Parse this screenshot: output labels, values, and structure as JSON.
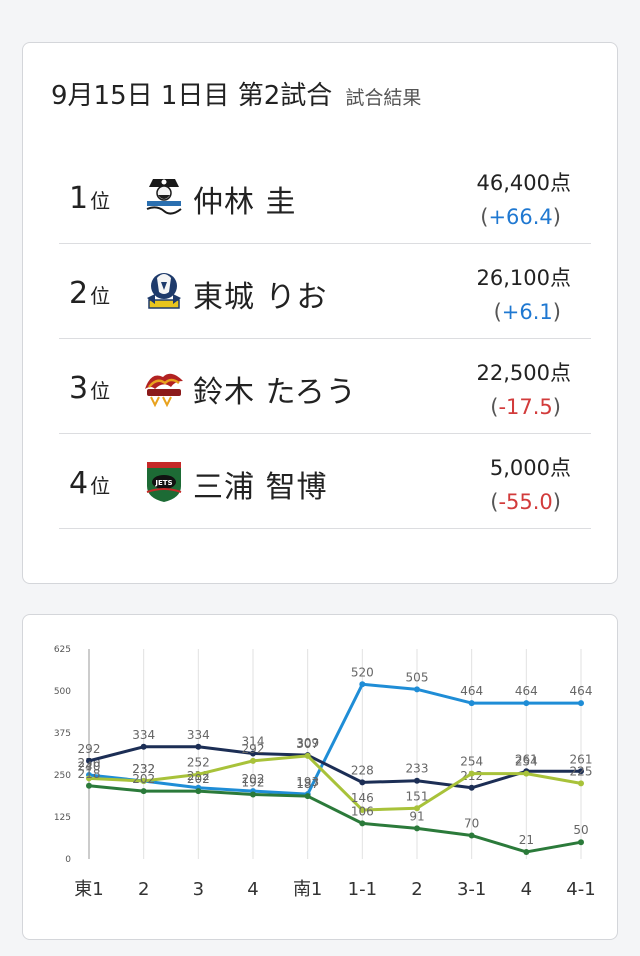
{
  "header": {
    "title": "9月15日 1日目 第2試合",
    "subtitle": "試合結果"
  },
  "results": [
    {
      "rank": "1",
      "rank_suffix": "位",
      "name": "仲林 圭",
      "score": "46,400点",
      "diff_open": "(",
      "diff": "+66.4",
      "diff_close": ")",
      "diff_sign": "pos",
      "logo": "pirates-logo"
    },
    {
      "rank": "2",
      "rank_suffix": "位",
      "name": "東城 りお",
      "score": "26,100点",
      "diff_open": "(",
      "diff": "+6.1",
      "diff_close": ")",
      "diff_sign": "pos",
      "logo": "phoenix-logo"
    },
    {
      "rank": "3",
      "rank_suffix": "位",
      "name": "鈴木 たろう",
      "score": "22,500点",
      "diff_open": "(",
      "diff": "-17.5",
      "diff_close": ")",
      "diff_sign": "neg",
      "logo": "thunders-logo"
    },
    {
      "rank": "4",
      "rank_suffix": "位",
      "name": "三浦 智博",
      "score": "5,000点",
      "diff_open": "(",
      "diff": "-55.0",
      "diff_close": ")",
      "diff_sign": "neg",
      "logo": "jets-logo"
    }
  ],
  "logo_colors": {
    "pirates": "#2a6fb0",
    "phoenix": "#1e3a6b",
    "thunders": "#b22222",
    "jets": "#1d6b35"
  },
  "chart_data": {
    "type": "line",
    "x": [
      "東1",
      "2",
      "3",
      "4",
      "南1",
      "1-1",
      "2",
      "3-1",
      "4",
      "4-1"
    ],
    "y_ticks": [
      0,
      125,
      250,
      375,
      500,
      625
    ],
    "ylim": [
      0,
      625
    ],
    "grid": "vertical",
    "series": [
      {
        "color": "#1f8dd6",
        "values": [
          250,
          232,
          212,
          202,
          193,
          520,
          505,
          464,
          464,
          464
        ]
      },
      {
        "color": "#1c2e55",
        "values": [
          292,
          334,
          334,
          314,
          309,
          228,
          233,
          212,
          261,
          261
        ]
      },
      {
        "color": "#a8c23a",
        "values": [
          240,
          232,
          252,
          292,
          307,
          146,
          151,
          254,
          254,
          225
        ]
      },
      {
        "color": "#2b7a3a",
        "values": [
          218,
          202,
          202,
          192,
          187,
          106,
          91,
          70,
          21,
          50
        ]
      }
    ]
  }
}
